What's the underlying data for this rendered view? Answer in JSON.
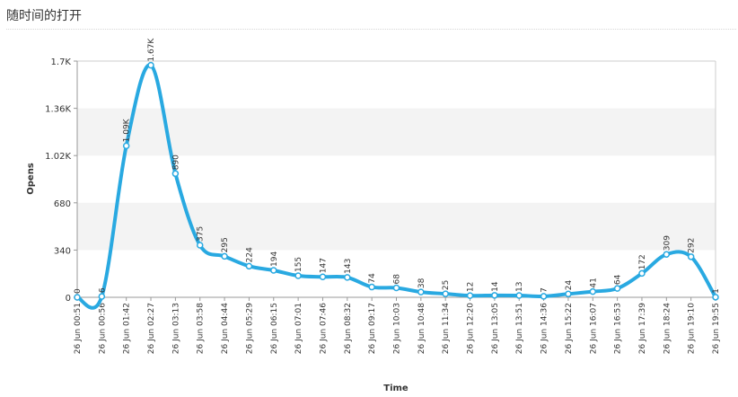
{
  "panel": {
    "title": "随时间的打开"
  },
  "chart_data": {
    "type": "line",
    "title": "",
    "xlabel": "Time",
    "ylabel": "Opens",
    "ylim": [
      0,
      1700
    ],
    "y_ticks": [
      0,
      340,
      680,
      1020,
      1360,
      1700
    ],
    "y_tick_labels": [
      "0",
      "340",
      "680",
      "1.02K",
      "1.36K",
      "1.7K"
    ],
    "categories": [
      "26 Jun 00:51",
      "26 Jun 00:56",
      "26 Jun 01:42",
      "26 Jun 02:27",
      "26 Jun 03:13",
      "26 Jun 03:58",
      "26 Jun 04:44",
      "26 Jun 05:29",
      "26 Jun 06:15",
      "26 Jun 07:01",
      "26 Jun 07:46",
      "26 Jun 08:32",
      "26 Jun 09:17",
      "26 Jun 10:03",
      "26 Jun 10:48",
      "26 Jun 11:34",
      "26 Jun 12:20",
      "26 Jun 13:05",
      "26 Jun 13:51",
      "26 Jun 14:36",
      "26 Jun 15:22",
      "26 Jun 16:07",
      "26 Jun 16:53",
      "26 Jun 17:39",
      "26 Jun 18:24",
      "26 Jun 19:10",
      "26 Jun 19:55"
    ],
    "series": [
      {
        "values": [
          0,
          6,
          1090,
          1670,
          890,
          375,
          295,
          224,
          194,
          155,
          147,
          143,
          74,
          68,
          38,
          25,
          12,
          14,
          13,
          7,
          24,
          41,
          64,
          172,
          309,
          292,
          1
        ],
        "labels": [
          "0",
          "6",
          "1.09K",
          "1.67K",
          "890",
          "375",
          "295",
          "224",
          "194",
          "155",
          "147",
          "143",
          "74",
          "68",
          "38",
          "25",
          "12",
          "14",
          "13",
          "7",
          "24",
          "41",
          "64",
          "172",
          "309",
          "292",
          "1"
        ]
      }
    ],
    "colors": {
      "line": "#29a9e1",
      "band": "#f3f3f3",
      "axis": "#999999"
    },
    "grid": "alternating-bands",
    "legend": "none"
  }
}
